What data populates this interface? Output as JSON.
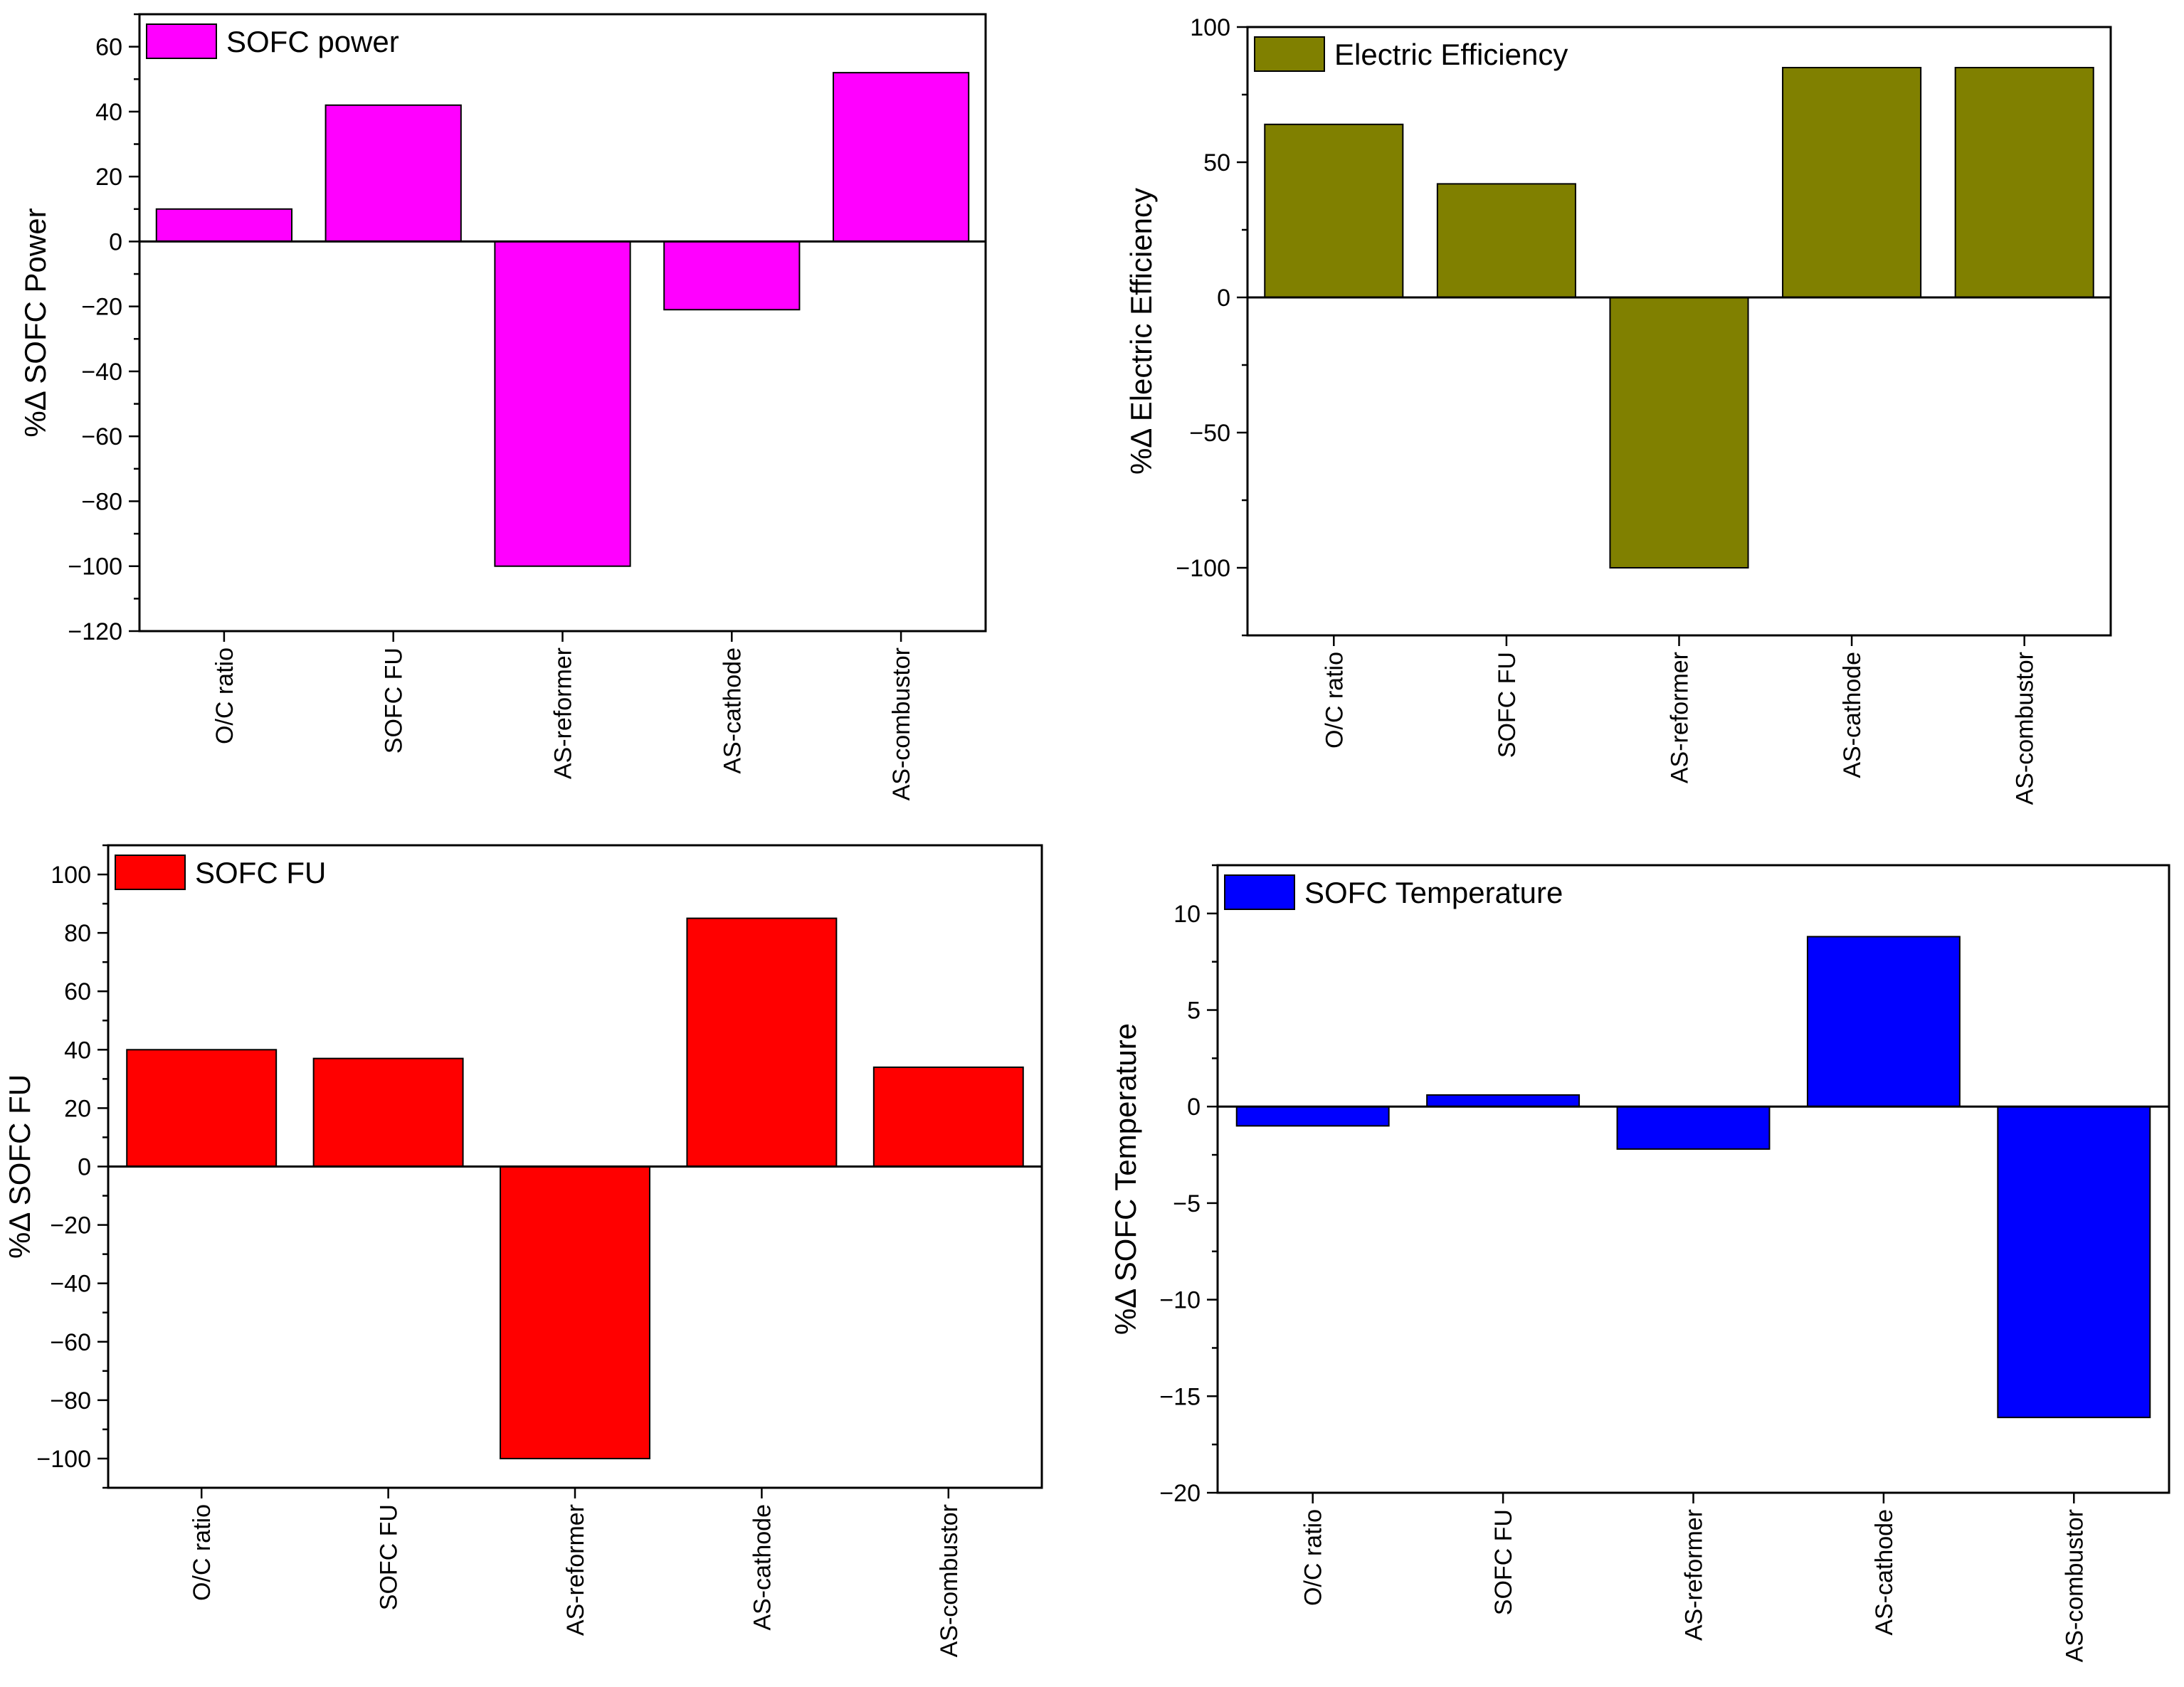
{
  "chart_data": [
    {
      "type": "bar",
      "title": "",
      "categories": [
        "O/C ratio",
        "SOFC FU",
        "AS-reformer",
        "AS-cathode",
        "AS-combustor"
      ],
      "series": [
        {
          "name": "SOFC power",
          "values": [
            10,
            42,
            -100,
            -21,
            52
          ],
          "color": "#FF00FF"
        }
      ],
      "xlabel": "",
      "ylabel": "%Δ SOFC Power",
      "ylim": [
        -120,
        70
      ],
      "yticks": [
        60,
        40,
        20,
        0,
        -20,
        -40,
        -60,
        -80,
        -100,
        -120
      ],
      "minor_step": 10,
      "legend": "top-left",
      "grid": false
    },
    {
      "type": "bar",
      "title": "",
      "categories": [
        "O/C ratio",
        "SOFC FU",
        "AS-reformer",
        "AS-cathode",
        "AS-combustor"
      ],
      "series": [
        {
          "name": "Electric Efficiency",
          "values": [
            64,
            42,
            -100,
            85,
            85
          ],
          "color": "#808000"
        }
      ],
      "xlabel": "",
      "ylabel": "%Δ Electric Efficiency",
      "ylim": [
        -125,
        100
      ],
      "yticks": [
        100,
        50,
        0,
        -50,
        -100
      ],
      "minor_step": 25,
      "legend": "top-left",
      "grid": false
    },
    {
      "type": "bar",
      "title": "",
      "categories": [
        "O/C ratio",
        "SOFC FU",
        "AS-reformer",
        "AS-cathode",
        "AS-combustor"
      ],
      "series": [
        {
          "name": "SOFC FU",
          "values": [
            40,
            37,
            -100,
            85,
            34
          ],
          "color": "#FF0000"
        }
      ],
      "xlabel": "",
      "ylabel": "%Δ SOFC FU",
      "ylim": [
        -110,
        110
      ],
      "yticks": [
        100,
        80,
        60,
        40,
        20,
        0,
        -20,
        -40,
        -60,
        -80,
        -100
      ],
      "minor_step": 10,
      "legend": "top-left",
      "grid": false
    },
    {
      "type": "bar",
      "title": "",
      "categories": [
        "O/C ratio",
        "SOFC FU",
        "AS-reformer",
        "AS-cathode",
        "AS-combustor"
      ],
      "series": [
        {
          "name": "SOFC Temperature",
          "values": [
            -1,
            0.6,
            -2.2,
            8.8,
            -16.1
          ],
          "color": "#0000FF"
        }
      ],
      "xlabel": "",
      "ylabel": "%Δ SOFC Temperature",
      "ylim": [
        -20,
        12.5
      ],
      "yticks": [
        10,
        5,
        0,
        -5,
        -10,
        -15,
        -20
      ],
      "minor_step": 2.5,
      "legend": "top-left",
      "grid": false
    }
  ]
}
